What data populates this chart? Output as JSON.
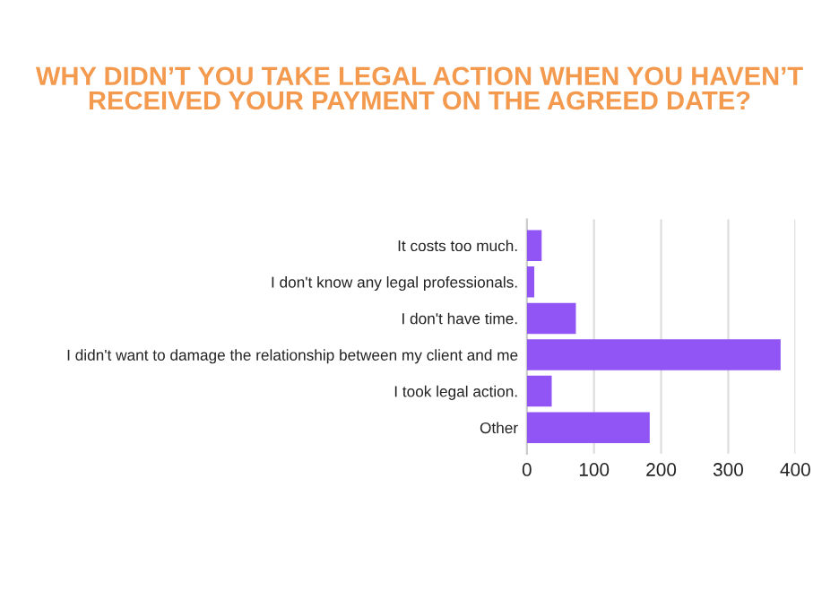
{
  "chart_data": {
    "type": "bar",
    "orientation": "horizontal",
    "title": "WHY DIDN’T YOU TAKE LEGAL ACTION WHEN YOU HAVEN’T RECEIVED YOUR PAYMENT ON THE AGREED DATE?",
    "categories": [
      "It costs too much.",
      "I don't know any legal professionals.",
      "I don't have time.",
      "I didn't want to damage the relationship between my client and me",
      "I took legal action.",
      "Other"
    ],
    "values": [
      22,
      11,
      73,
      378,
      37,
      183
    ],
    "color": "#9155f5",
    "xlim": [
      0,
      400
    ],
    "xticks": [
      0,
      100,
      200,
      300,
      400
    ],
    "grid": "x",
    "legend": false
  }
}
